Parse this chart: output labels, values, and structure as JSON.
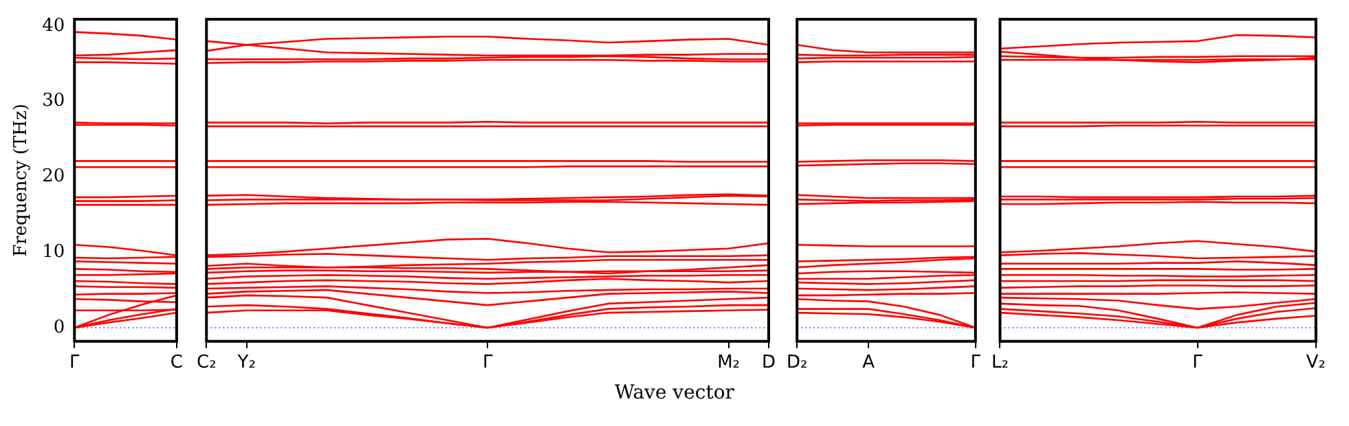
{
  "chart_data": [
    {
      "type": "line",
      "ylabel": "Frequency (THz)",
      "categories": [
        "Γ",
        null,
        null,
        "C"
      ],
      "ylim": [
        -1.8,
        40.9
      ],
      "yticks": [
        0,
        10,
        20,
        30,
        40
      ],
      "marker": "none",
      "line_style": "solid",
      "legend": false,
      "ref_lines": [
        {
          "axis": "y",
          "value": 0,
          "color": "#7080e0",
          "line_style": "dotted"
        }
      ],
      "series": [
        {
          "color": "#ff0000",
          "values": [
            0,
            0.7,
            1.3,
            2
          ]
        },
        {
          "color": "#ff0000",
          "values": [
            0,
            1,
            1.8,
            2.5
          ]
        },
        {
          "color": "#ff0000",
          "values": [
            0,
            1.7,
            3.1,
            4.3
          ]
        },
        {
          "color": "#ff0000",
          "values": [
            2.3,
            2.3,
            2.3,
            2.4
          ]
        },
        {
          "color": "#ff0000",
          "values": [
            3.8,
            3.7,
            3.5,
            3.4
          ]
        },
        {
          "color": "#ff0000",
          "values": [
            4.4,
            4.5,
            4.5,
            4.6
          ]
        },
        {
          "color": "#ff0000",
          "values": [
            5.5,
            5.4,
            5.4,
            5.3
          ]
        },
        {
          "color": "#ff0000",
          "values": [
            6.2,
            6.1,
            5.9,
            5.8
          ]
        },
        {
          "color": "#ff0000",
          "values": [
            7,
            7,
            7.1,
            7.2
          ]
        },
        {
          "color": "#ff0000",
          "values": [
            7.8,
            7.7,
            7.5,
            7.4
          ]
        },
        {
          "color": "#ff0000",
          "values": [
            8.8,
            8.7,
            8.6,
            8.5
          ]
        },
        {
          "color": "#ff0000",
          "values": [
            9.3,
            9.2,
            9.3,
            9.4
          ]
        },
        {
          "color": "#ff0000",
          "values": [
            11,
            10.7,
            10.2,
            9.6
          ]
        },
        {
          "color": "#ff0000",
          "values": [
            16.3,
            16.3,
            16.3,
            16.3
          ]
        },
        {
          "color": "#ff0000",
          "values": [
            16.8,
            16.8,
            16.8,
            16.9
          ]
        },
        {
          "color": "#ff0000",
          "values": [
            17.3,
            17.3,
            17.4,
            17.5
          ]
        },
        {
          "color": "#ff0000",
          "values": [
            21.3,
            21.3,
            21.3,
            21.3
          ]
        },
        {
          "color": "#ff0000",
          "values": [
            22.1,
            22.1,
            22.1,
            22.1
          ]
        },
        {
          "color": "#ff0000",
          "values": [
            26.9,
            26.9,
            26.9,
            26.8
          ]
        },
        {
          "color": "#ff0000",
          "values": [
            27.2,
            27.1,
            27.1,
            27.1
          ]
        },
        {
          "color": "#ff0000",
          "values": [
            35.2,
            35.2,
            35.1,
            35
          ]
        },
        {
          "color": "#ff0000",
          "values": [
            35.8,
            35.7,
            35.6,
            35.7
          ]
        },
        {
          "color": "#ff0000",
          "values": [
            36.1,
            36.2,
            36.5,
            36.8
          ]
        },
        {
          "color": "#ff0000",
          "values": [
            39.2,
            39,
            38.7,
            38.2
          ]
        }
      ]
    },
    {
      "type": "line",
      "xlabel": "Wave vector",
      "categories": [
        "C₂",
        "Y₂",
        null,
        null,
        null,
        null,
        null,
        "Γ",
        null,
        null,
        null,
        null,
        null,
        "M₂",
        "D"
      ],
      "ylim": [
        -1.8,
        40.9
      ],
      "tick_labels": "x",
      "marker": "none",
      "line_style": "solid",
      "legend": false,
      "ref_lines": [
        {
          "axis": "y",
          "value": 0,
          "color": "#7080e0",
          "line_style": "dotted"
        }
      ],
      "series": [
        {
          "color": "#ff0000",
          "values": [
            2,
            2.3,
            2.3,
            2.3,
            1.7,
            1.2,
            0.6,
            0,
            0.7,
            1.4,
            2,
            2.1,
            2.2,
            2.3,
            2.4
          ]
        },
        {
          "color": "#ff0000",
          "values": [
            2.8,
            3,
            2.8,
            2.5,
            1.9,
            1.3,
            0.6,
            0,
            0.8,
            1.7,
            2.5,
            2.7,
            2.8,
            3,
            3
          ]
        },
        {
          "color": "#ff0000",
          "values": [
            4,
            4.3,
            4.2,
            4,
            3,
            2,
            1,
            0,
            1.1,
            2.2,
            3.2,
            3.4,
            3.6,
            3.8,
            4
          ]
        },
        {
          "color": "#ff0000",
          "values": [
            4.5,
            4.8,
            4.9,
            5,
            4.5,
            4,
            3.5,
            3,
            3.5,
            4,
            4.5,
            4.6,
            4.7,
            4.8,
            4.6
          ]
        },
        {
          "color": "#ff0000",
          "values": [
            5.2,
            5.3,
            5.4,
            5.5,
            5.3,
            5.1,
            4.8,
            4.6,
            4.7,
            4.9,
            5,
            5.1,
            5.1,
            5.2,
            5.2
          ]
        },
        {
          "color": "#ff0000",
          "values": [
            5.8,
            6,
            6.2,
            6.3,
            6.2,
            6.1,
            5.9,
            5.8,
            6,
            6.3,
            6.5,
            6.3,
            6.2,
            6,
            6.2
          ]
        },
        {
          "color": "#ff0000",
          "values": [
            6.5,
            6.8,
            6.9,
            7,
            6.9,
            6.8,
            6.6,
            6.5,
            6.6,
            6.7,
            6.8,
            6.9,
            6.9,
            7,
            7
          ]
        },
        {
          "color": "#ff0000",
          "values": [
            7.3,
            7.5,
            7.6,
            7.6,
            7.5,
            7.5,
            7.4,
            7.3,
            7.4,
            7.4,
            7.5,
            7.5,
            7.5,
            7.5,
            7.6
          ]
        },
        {
          "color": "#ff0000",
          "values": [
            7.8,
            8,
            8,
            8,
            8,
            7.9,
            7.9,
            7.8,
            7.6,
            7.4,
            7.2,
            7.5,
            7.7,
            8,
            8.3
          ]
        },
        {
          "color": "#ff0000",
          "values": [
            8.2,
            8.5,
            8.2,
            8,
            8.1,
            8.3,
            8.4,
            8.5,
            8.7,
            8.8,
            9,
            9,
            9,
            9,
            9
          ]
        },
        {
          "color": "#ff0000",
          "values": [
            9.4,
            9.5,
            9.7,
            9.8,
            9.6,
            9.4,
            9.2,
            9,
            9.2,
            9.3,
            9.5,
            9.5,
            9.5,
            9.5,
            9.6
          ]
        },
        {
          "color": "#ff0000",
          "values": [
            9.6,
            9.8,
            10.1,
            10.5,
            10.9,
            11.3,
            11.7,
            11.8,
            11.2,
            10.5,
            10,
            10.1,
            10.3,
            10.5,
            11.2
          ]
        },
        {
          "color": "#ff0000",
          "values": [
            16.3,
            16.4,
            16.5,
            16.5,
            16.5,
            16.5,
            16.6,
            16.6,
            16.6,
            16.7,
            16.7,
            16.6,
            16.5,
            16.4,
            16.3
          ]
        },
        {
          "color": "#ff0000",
          "values": [
            16.9,
            17,
            17,
            17,
            17,
            17,
            17,
            17,
            17.1,
            17.2,
            17.3,
            17.4,
            17.6,
            17.7,
            17.5
          ]
        },
        {
          "color": "#ff0000",
          "values": [
            17.5,
            17.6,
            17.4,
            17.2,
            17.1,
            17,
            17,
            16.9,
            16.9,
            16.9,
            16.9,
            17.1,
            17.3,
            17.5,
            17.4
          ]
        },
        {
          "color": "#ff0000",
          "values": [
            21.3,
            21.3,
            21.3,
            21.3,
            21.3,
            21.3,
            21.3,
            21.3,
            21.3,
            21.4,
            21.4,
            21.4,
            21.4,
            21.4,
            21.4
          ]
        },
        {
          "color": "#ff0000",
          "values": [
            22.1,
            22.1,
            22.1,
            22.1,
            22.1,
            22.1,
            22.1,
            22.1,
            22.1,
            22.1,
            22.1,
            22.1,
            22,
            22,
            22
          ]
        },
        {
          "color": "#ff0000",
          "values": [
            26.7,
            26.7,
            26.7,
            26.7,
            26.7,
            26.7,
            26.7,
            26.7,
            26.7,
            26.7,
            26.7,
            26.7,
            26.7,
            26.7,
            26.7
          ]
        },
        {
          "color": "#ff0000",
          "values": [
            27.2,
            27.2,
            27.2,
            27.1,
            27.2,
            27.2,
            27.2,
            27.3,
            27.2,
            27.2,
            27.2,
            27.2,
            27.2,
            27.2,
            27.2
          ]
        },
        {
          "color": "#ff0000",
          "values": [
            35.1,
            35.2,
            35.2,
            35.3,
            35.3,
            35.4,
            35.4,
            35.5,
            35.5,
            35.5,
            35.5,
            35.4,
            35.4,
            35.3,
            35.3
          ]
        },
        {
          "color": "#ff0000",
          "values": [
            35.6,
            35.6,
            35.6,
            35.6,
            35.6,
            35.7,
            35.7,
            35.8,
            35.9,
            35.9,
            36,
            35.9,
            35.7,
            35.6,
            35.6
          ]
        },
        {
          "color": "#ff0000",
          "values": [
            38,
            37.5,
            37,
            36.5,
            36.4,
            36.3,
            36.2,
            36.1,
            36.1,
            36.1,
            36.1,
            36.2,
            36.2,
            36.3,
            36.3
          ]
        },
        {
          "color": "#ff0000",
          "values": [
            36.7,
            37.5,
            37.9,
            38.3,
            38.4,
            38.5,
            38.6,
            38.6,
            38.3,
            38.1,
            37.8,
            38,
            38.2,
            38.3,
            37.5
          ]
        }
      ]
    },
    {
      "type": "line",
      "categories": [
        "D₂",
        null,
        "A",
        null,
        null,
        "Γ"
      ],
      "ylim": [
        -1.8,
        40.9
      ],
      "tick_labels": "x",
      "marker": "none",
      "line_style": "solid",
      "legend": false,
      "ref_lines": [
        {
          "axis": "y",
          "value": 0,
          "color": "#7080e0",
          "line_style": "dotted"
        }
      ],
      "series": [
        {
          "color": "#ff0000",
          "values": [
            2,
            1.9,
            1.8,
            1.4,
            0.8,
            0
          ]
        },
        {
          "color": "#ff0000",
          "values": [
            2.5,
            2.5,
            2.5,
            1.8,
            1,
            0
          ]
        },
        {
          "color": "#ff0000",
          "values": [
            3.8,
            3.6,
            3.5,
            2.8,
            1.7,
            0
          ]
        },
        {
          "color": "#ff0000",
          "values": [
            4.3,
            4.3,
            4.4,
            4.5,
            4.5,
            4.6
          ]
        },
        {
          "color": "#ff0000",
          "values": [
            5.2,
            5.1,
            5,
            5.1,
            5.3,
            5.5
          ]
        },
        {
          "color": "#ff0000",
          "values": [
            6,
            5.9,
            5.8,
            5.9,
            6.1,
            6.3
          ]
        },
        {
          "color": "#ff0000",
          "values": [
            6.5,
            6.5,
            6.5,
            6.7,
            6.9,
            7
          ]
        },
        {
          "color": "#ff0000",
          "values": [
            7.2,
            7.4,
            7.5,
            7.5,
            7.4,
            7.3
          ]
        },
        {
          "color": "#ff0000",
          "values": [
            8,
            8.3,
            8.5,
            8.7,
            9,
            9.2
          ]
        },
        {
          "color": "#ff0000",
          "values": [
            8.8,
            8.9,
            9,
            9.1,
            9.3,
            9.4
          ]
        },
        {
          "color": "#ff0000",
          "values": [
            11,
            10.9,
            10.8,
            10.8,
            10.8,
            10.8
          ]
        },
        {
          "color": "#ff0000",
          "values": [
            16.4,
            16.5,
            16.6,
            16.6,
            16.7,
            16.8
          ]
        },
        {
          "color": "#ff0000",
          "values": [
            17,
            16.9,
            16.8,
            16.9,
            16.9,
            17
          ]
        },
        {
          "color": "#ff0000",
          "values": [
            17.6,
            17.4,
            17.2,
            17.2,
            17.2,
            17.2
          ]
        },
        {
          "color": "#ff0000",
          "values": [
            21.5,
            21.6,
            21.7,
            21.8,
            21.8,
            21.7
          ]
        },
        {
          "color": "#ff0000",
          "values": [
            22,
            22.1,
            22.2,
            22.2,
            22.2,
            22.1
          ]
        },
        {
          "color": "#ff0000",
          "values": [
            26.8,
            26.9,
            26.9,
            26.9,
            26.9,
            26.9
          ]
        },
        {
          "color": "#ff0000",
          "values": [
            27.1,
            27.1,
            27.1,
            27.1,
            27.1,
            27.1
          ]
        },
        {
          "color": "#ff0000",
          "values": [
            35.2,
            35.3,
            35.3,
            35.3,
            35.3,
            35.3
          ]
        },
        {
          "color": "#ff0000",
          "values": [
            35.7,
            35.8,
            35.8,
            35.8,
            35.8,
            35.9
          ]
        },
        {
          "color": "#ff0000",
          "values": [
            36.2,
            36.1,
            36.1,
            36.2,
            36.2,
            36.2
          ]
        },
        {
          "color": "#ff0000",
          "values": [
            37.5,
            36.8,
            36.5,
            36.5,
            36.5,
            36.5
          ]
        }
      ]
    },
    {
      "type": "line",
      "categories": [
        "L₂",
        null,
        null,
        null,
        null,
        "Γ",
        null,
        null,
        "V₂"
      ],
      "ylim": [
        -1.8,
        40.9
      ],
      "tick_labels": "x",
      "marker": "none",
      "line_style": "solid",
      "legend": false,
      "ref_lines": [
        {
          "axis": "y",
          "value": 0,
          "color": "#7080e0",
          "line_style": "dotted"
        }
      ],
      "series": [
        {
          "color": "#ff0000",
          "values": [
            2,
            1.7,
            1.4,
            1,
            0.5,
            0,
            0.7,
            1.2,
            1.6
          ]
        },
        {
          "color": "#ff0000",
          "values": [
            2.5,
            2.2,
            1.9,
            1.5,
            0.8,
            0,
            1.2,
            2.1,
            2.6
          ]
        },
        {
          "color": "#ff0000",
          "values": [
            3.2,
            3,
            2.9,
            2.3,
            1.2,
            0,
            1.7,
            2.8,
            3.3
          ]
        },
        {
          "color": "#ff0000",
          "values": [
            4,
            3.9,
            3.8,
            3.6,
            3,
            2.5,
            2.8,
            3.3,
            3.8
          ]
        },
        {
          "color": "#ff0000",
          "values": [
            4.5,
            4.5,
            4.5,
            4.5,
            4.5,
            4.6,
            4.7,
            4.6,
            4.5
          ]
        },
        {
          "color": "#ff0000",
          "values": [
            5.3,
            5.4,
            5.5,
            5.5,
            5.6,
            5.6,
            5.5,
            5.5,
            5.6
          ]
        },
        {
          "color": "#ff0000",
          "values": [
            6.2,
            6.2,
            6.2,
            6.2,
            6.3,
            6.3,
            6.3,
            6.3,
            6.2
          ]
        },
        {
          "color": "#ff0000",
          "values": [
            7,
            7,
            7,
            6.9,
            6.9,
            6.8,
            6.8,
            6.9,
            7
          ]
        },
        {
          "color": "#ff0000",
          "values": [
            7.8,
            7.8,
            7.8,
            7.8,
            7.8,
            7.8,
            7.7,
            7.7,
            7.8
          ]
        },
        {
          "color": "#ff0000",
          "values": [
            8.5,
            8.5,
            8.5,
            8.5,
            8.6,
            8.6,
            8.8,
            8.6,
            8.3
          ]
        },
        {
          "color": "#ff0000",
          "values": [
            9.6,
            9.8,
            9.9,
            9.7,
            9.5,
            9.2,
            9.3,
            9.4,
            9.5
          ]
        },
        {
          "color": "#ff0000",
          "values": [
            10,
            10.2,
            10.5,
            10.8,
            11.2,
            11.5,
            11.1,
            10.7,
            10.1
          ]
        },
        {
          "color": "#ff0000",
          "values": [
            16.4,
            16.4,
            16.5,
            16.6,
            16.6,
            16.7,
            16.6,
            16.6,
            16.5
          ]
        },
        {
          "color": "#ff0000",
          "values": [
            17,
            17,
            17,
            17,
            17,
            17,
            17.1,
            17.1,
            17.2
          ]
        },
        {
          "color": "#ff0000",
          "values": [
            17.4,
            17.4,
            17.3,
            17.3,
            17.3,
            17.3,
            17.4,
            17.4,
            17.5
          ]
        },
        {
          "color": "#ff0000",
          "values": [
            21.3,
            21.3,
            21.3,
            21.3,
            21.3,
            21.3,
            21.3,
            21.3,
            21.3
          ]
        },
        {
          "color": "#ff0000",
          "values": [
            22.1,
            22.1,
            22.1,
            22.1,
            22.1,
            22.1,
            22.1,
            22.1,
            22.1
          ]
        },
        {
          "color": "#ff0000",
          "values": [
            26.7,
            26.7,
            26.7,
            26.8,
            26.8,
            26.8,
            26.8,
            26.8,
            26.8
          ]
        },
        {
          "color": "#ff0000",
          "values": [
            27.2,
            27.2,
            27.2,
            27.2,
            27.2,
            27.3,
            27.2,
            27.2,
            27.2
          ]
        },
        {
          "color": "#ff0000",
          "values": [
            35.5,
            35.5,
            35.5,
            35.5,
            35.5,
            35.5,
            35.6,
            35.6,
            35.6
          ]
        },
        {
          "color": "#ff0000",
          "values": [
            36,
            35.9,
            35.8,
            35.8,
            35.9,
            35.9,
            36,
            36,
            36
          ]
        },
        {
          "color": "#ff0000",
          "values": [
            36.6,
            36.2,
            35.8,
            35.5,
            35.3,
            35.2,
            35.4,
            35.5,
            35.8
          ]
        },
        {
          "color": "#ff0000",
          "values": [
            37,
            37.3,
            37.6,
            37.8,
            37.9,
            38,
            38.8,
            38.7,
            38.5
          ]
        }
      ]
    }
  ]
}
